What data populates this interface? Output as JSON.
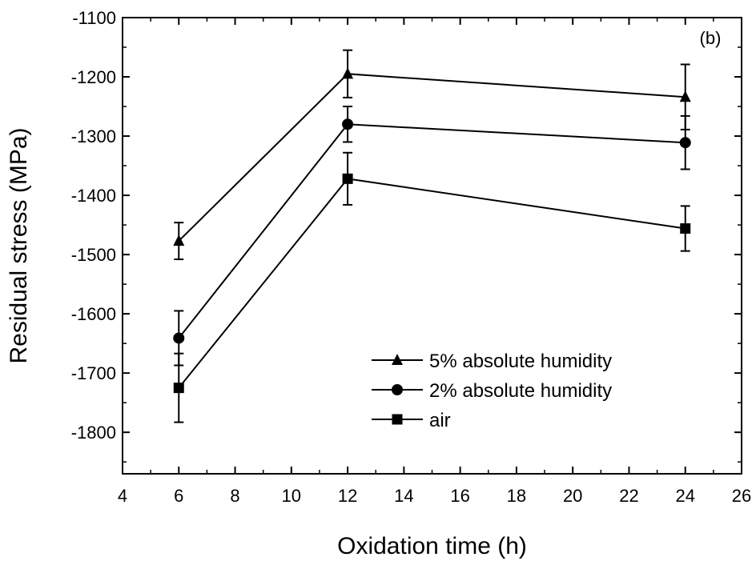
{
  "chart_data": {
    "type": "line",
    "panel_label": "(b)",
    "xlabel": "Oxidation time (h)",
    "ylabel": "Residual stress (MPa)",
    "xlim": [
      4,
      26
    ],
    "ylim": [
      -1870,
      -1100
    ],
    "xticks": [
      4,
      6,
      8,
      10,
      12,
      14,
      16,
      18,
      20,
      22,
      24,
      26
    ],
    "yticks": [
      -1800,
      -1700,
      -1600,
      -1500,
      -1400,
      -1300,
      -1200,
      -1100
    ],
    "xtick_labels": [
      "4",
      "6",
      "8",
      "10",
      "12",
      "14",
      "16",
      "18",
      "20",
      "22",
      "24",
      "26"
    ],
    "ytick_labels": [
      "-1800",
      "-1700",
      "-1600",
      "-1500",
      "-1400",
      "-1300",
      "-1200",
      "-1100"
    ],
    "x": [
      6,
      12,
      24
    ],
    "legend_position": "bottom-right",
    "grid": false,
    "series": [
      {
        "name": "5% absolute humidity",
        "marker": "triangle",
        "values": [
          -1477,
          -1195,
          -1234
        ],
        "errors": [
          31,
          40,
          55
        ],
        "color": "#000000"
      },
      {
        "name": "2% absolute humidity",
        "marker": "circle",
        "values": [
          -1641,
          -1280,
          -1311
        ],
        "errors": [
          46,
          30,
          45
        ],
        "color": "#000000"
      },
      {
        "name": "air",
        "marker": "square",
        "values": [
          -1725,
          -1372,
          -1456
        ],
        "errors": [
          58,
          44,
          38
        ],
        "color": "#000000"
      }
    ]
  }
}
